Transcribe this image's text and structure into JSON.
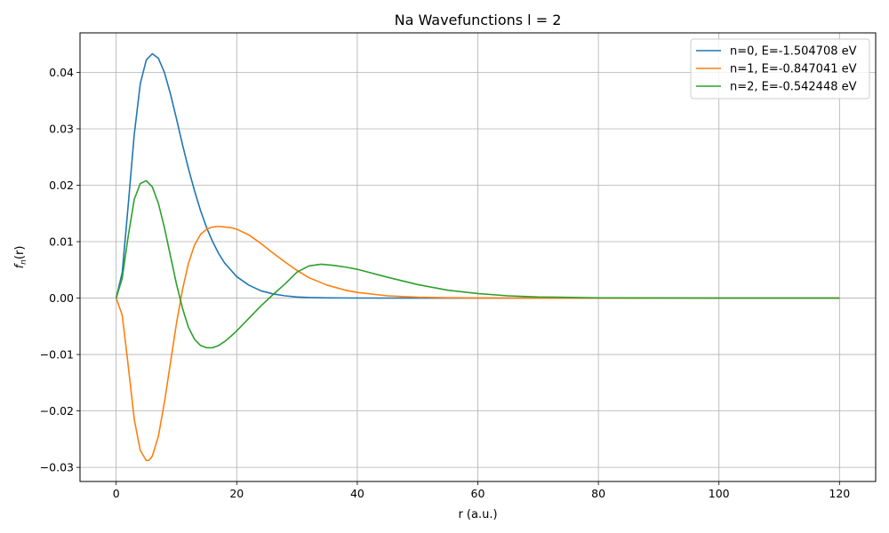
{
  "chart_data": {
    "type": "line",
    "title": "Na Wavefunctions l = 2",
    "xlabel": "r (a.u.)",
    "ylabel_main": "f",
    "ylabel_sub": "n",
    "ylabel_tail": "(r)",
    "xlim": [
      -6,
      126
    ],
    "ylim": [
      -0.0325,
      0.047
    ],
    "xticks": [
      0,
      20,
      40,
      60,
      80,
      100,
      120
    ],
    "xtick_labels": [
      "0",
      "20",
      "40",
      "60",
      "80",
      "100",
      "120"
    ],
    "yticks": [
      -0.03,
      -0.02,
      -0.01,
      0.0,
      0.01,
      0.02,
      0.03,
      0.04
    ],
    "ytick_labels": [
      "−0.03",
      "−0.02",
      "−0.01",
      "0.00",
      "0.01",
      "0.02",
      "0.03",
      "0.04"
    ],
    "grid": true,
    "legend_position": "top-right",
    "series": [
      {
        "name": "n=0, E=-1.504708 eV",
        "color": "#1f77b4",
        "x": [
          0,
          1,
          2,
          3,
          4,
          5,
          6,
          7,
          8,
          9,
          10,
          11,
          12,
          13,
          14,
          15,
          16,
          17,
          18,
          20,
          22,
          24,
          26,
          28,
          30,
          32,
          35,
          40,
          50,
          60,
          80,
          100,
          120
        ],
        "y": [
          0,
          0.0045,
          0.0165,
          0.029,
          0.038,
          0.0422,
          0.0433,
          0.0425,
          0.04,
          0.0362,
          0.0318,
          0.0272,
          0.0229,
          0.019,
          0.0155,
          0.0125,
          0.01,
          0.0079,
          0.0062,
          0.0038,
          0.0023,
          0.0013,
          0.00075,
          0.0004,
          0.0002,
          0.0001,
          4e-05,
          1e-05,
          0,
          0,
          0,
          0,
          0
        ]
      },
      {
        "name": "n=1, E=-0.847041 eV",
        "color": "#ff7f0e",
        "x": [
          0,
          1,
          2,
          3,
          4,
          5,
          5.5,
          6,
          7,
          8,
          9,
          10,
          11,
          12,
          13,
          14,
          15,
          16,
          17,
          18,
          19,
          20,
          22,
          24,
          26,
          28,
          30,
          32,
          35,
          38,
          40,
          45,
          50,
          55,
          60,
          70,
          80,
          100,
          120
        ],
        "y": [
          0,
          -0.003,
          -0.012,
          -0.0215,
          -0.027,
          -0.0288,
          -0.0287,
          -0.028,
          -0.0245,
          -0.0185,
          -0.0115,
          -0.0045,
          0.0015,
          0.0062,
          0.0094,
          0.0113,
          0.0122,
          0.0126,
          0.0127,
          0.0126,
          0.0125,
          0.0122,
          0.0112,
          0.0097,
          0.008,
          0.0064,
          0.0049,
          0.0036,
          0.0023,
          0.0014,
          0.001,
          0.0004,
          0.00015,
          6e-05,
          2e-05,
          0,
          0,
          0,
          0
        ]
      },
      {
        "name": "n=2, E=-0.542448 eV",
        "color": "#2ca02c",
        "x": [
          0,
          1,
          2,
          3,
          4,
          5,
          6,
          7,
          8,
          9,
          10,
          11,
          12,
          13,
          14,
          15,
          16,
          17,
          18,
          19,
          20,
          22,
          24,
          26,
          28,
          30,
          32,
          34,
          36,
          38,
          40,
          45,
          50,
          55,
          60,
          65,
          70,
          80,
          100,
          120
        ],
        "y": [
          0,
          0.0035,
          0.011,
          0.0175,
          0.0203,
          0.0208,
          0.0197,
          0.0168,
          0.0125,
          0.0075,
          0.0025,
          -0.0018,
          -0.0052,
          -0.0073,
          -0.0084,
          -0.0088,
          -0.0088,
          -0.0084,
          -0.0077,
          -0.0068,
          -0.0058,
          -0.0036,
          -0.0014,
          0.0006,
          0.0025,
          0.0046,
          0.0057,
          0.006,
          0.0058,
          0.0055,
          0.0051,
          0.0037,
          0.0024,
          0.0014,
          0.0008,
          0.0004,
          0.0002,
          5e-05,
          0,
          0
        ]
      }
    ]
  }
}
